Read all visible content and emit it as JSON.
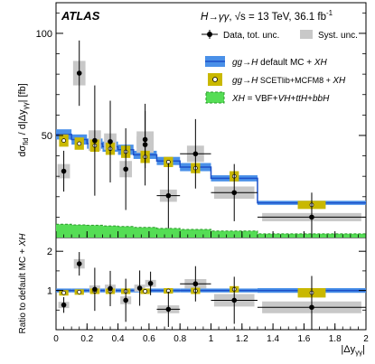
{
  "chart_data": {
    "type": "step-histogram",
    "experiment": "ATLAS",
    "process_label": "H→γγ, √s = 13 TeV, 36.1 fb⁻¹",
    "process_parts": {
      "lhs": "H",
      "arrow": "→",
      "final": "γγ",
      "sqrt": "√s",
      "energy": " = 13 TeV,  36.1 fb",
      "sup": "-1"
    },
    "xlabel": "|Δyγγ|",
    "xlabel_parts": {
      "main": "|Δy",
      "sub": "γγ",
      "end": "|"
    },
    "xlim": [
      0,
      2
    ],
    "x_ticks": [
      "0",
      "0.2",
      "0.4",
      "0.6",
      "0.8",
      "1",
      "1.2",
      "1.4",
      "1.6",
      "1.8",
      "2"
    ],
    "bin_edges": [
      0,
      0.1,
      0.2,
      0.3,
      0.4,
      0.5,
      0.65,
      0.8,
      1.0,
      1.3,
      2.0
    ],
    "legend": [
      {
        "label": "Data, tot. unc.",
        "style": "data"
      },
      {
        "label": "Syst. unc.",
        "style": "syst"
      },
      {
        "label": "gg→H default MC + XH",
        "style": "blueband"
      },
      {
        "label": "gg→H SCETlib+MCFM8 + XH",
        "style": "yellowbox"
      },
      {
        "label": "XH = VBF+VH+ttH+bbH",
        "style": "greenfill"
      }
    ],
    "colors": {
      "blue_band": "#4a90e8",
      "blue_line": "#1c4fc8",
      "yellow": "#c9b800",
      "green": "#55dd55",
      "syst": "#c8c8c8"
    },
    "top_panel": {
      "ylabel": "dσfid / d|Δyγγ|  [fb]",
      "ylabel_parts": {
        "a": "dσ",
        "a_sub": "fid",
        "b": " / d|Δy",
        "b_sub": "γγ",
        "c": "|  [fb]"
      },
      "ylim": [
        0,
        115
      ],
      "y_ticks": [
        "50",
        "100"
      ],
      "y_tick_values": [
        50,
        100
      ],
      "data": {
        "values": [
          32.5,
          80.5,
          47.5,
          47.0,
          33.5,
          45.5,
          48.0,
          20.5,
          41.0,
          22.0,
          10.0
        ],
        "stat_unc": [
          10,
          16,
          27,
          20,
          20,
          20,
          14,
          16,
          17,
          14,
          12
        ],
        "syst_unc": [
          3.5,
          6,
          5,
          4,
          4,
          4,
          4,
          3,
          4,
          3,
          2
        ],
        "x": [
          0.05,
          0.15,
          0.25,
          0.35,
          0.45,
          0.575,
          0.575,
          0.725,
          0.9,
          1.15,
          1.65
        ]
      },
      "default_mc": [
        50.5,
        48.0,
        46.0,
        44.5,
        43.0,
        40.5,
        37.5,
        34.5,
        29.0,
        17.0
      ],
      "default_mc_unc": [
        2.5,
        2.5,
        2.5,
        2.5,
        2.5,
        2.0,
        2.0,
        2.0,
        1.5,
        1.0
      ],
      "scetlib": [
        47.5,
        46.0,
        45.0,
        43.5,
        42.0,
        39.5,
        37.0,
        34.0,
        30.0,
        16.0
      ],
      "scetlib_unc": [
        3.0,
        3.0,
        3.0,
        3.0,
        3.0,
        3.0,
        2.5,
        2.5,
        2.5,
        2.0
      ],
      "xh": [
        6.5,
        6.2,
        6.0,
        5.7,
        5.4,
        5.0,
        4.5,
        4.0,
        3.2,
        1.8
      ]
    },
    "ratio_panel": {
      "ylabel": "Ratio to default MC + XH",
      "ylabel_parts": {
        "a": "Ratio to default MC + ",
        "b": "XH"
      },
      "ylim": [
        0,
        2.35
      ],
      "y_ticks": [
        "1",
        "2"
      ],
      "y_tick_values": [
        1,
        2
      ],
      "data": [
        0.63,
        1.68,
        1.03,
        1.05,
        0.75,
        1.06,
        1.18,
        0.52,
        1.17,
        0.75,
        0.57
      ],
      "data_x": [
        0.05,
        0.15,
        0.25,
        0.35,
        0.45,
        0.54,
        0.61,
        0.725,
        0.9,
        1.15,
        1.65
      ],
      "data_unc": [
        0.2,
        0.3,
        0.55,
        0.45,
        0.55,
        0.45,
        0.3,
        0.45,
        0.45,
        0.6,
        0.8
      ],
      "syst_unc": [
        0.08,
        0.12,
        0.1,
        0.1,
        0.1,
        0.09,
        0.09,
        0.1,
        0.12,
        0.16,
        0.15
      ],
      "default_unc": [
        0.05,
        0.05,
        0.05,
        0.05,
        0.05,
        0.05,
        0.05,
        0.05,
        0.05,
        0.06
      ],
      "scetlib": [
        0.94,
        0.96,
        0.98,
        0.98,
        0.98,
        0.98,
        0.99,
        0.99,
        1.03,
        0.94
      ],
      "scetlib_unc": [
        0.07,
        0.07,
        0.07,
        0.07,
        0.07,
        0.07,
        0.07,
        0.08,
        0.08,
        0.12
      ]
    }
  }
}
